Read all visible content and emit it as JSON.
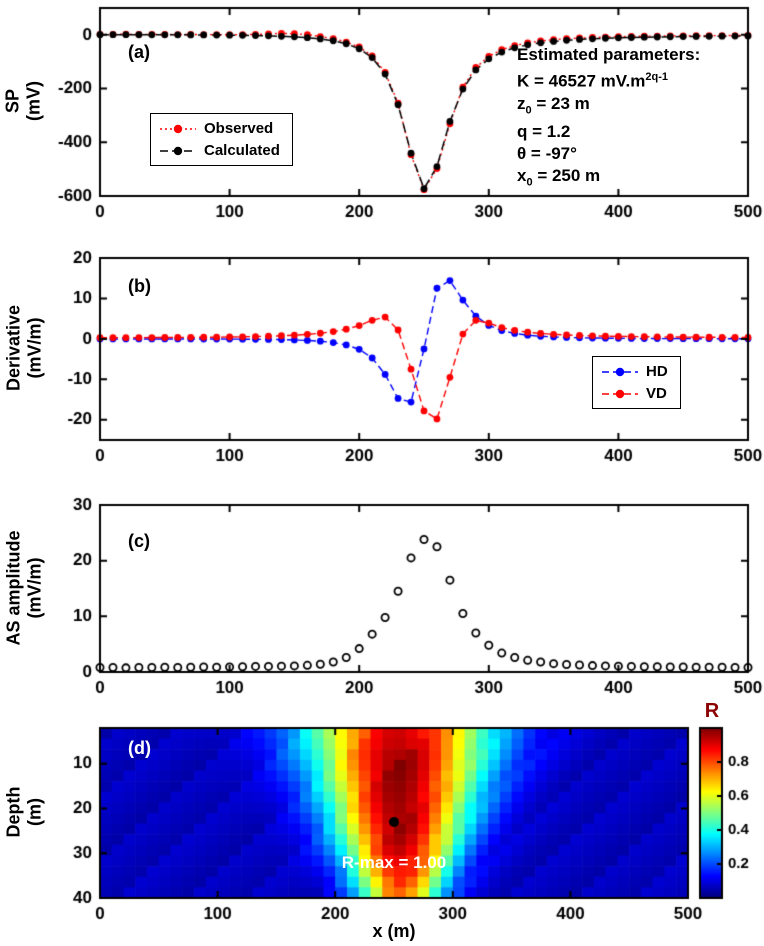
{
  "colors": {
    "observed": "#ff0000",
    "calculated": "#000000",
    "hd": "#0000ff",
    "vd": "#ff0000",
    "annotation_text": "#ffffff",
    "colorbar_label": "#8b0000",
    "background": "#ffffff"
  },
  "panels": {
    "a": {
      "label": "(a)",
      "ylabel": "SP\n(mV)",
      "legend": {
        "observed": "Observed",
        "calculated": "Calculated"
      },
      "params": {
        "title": "Estimated parameters:",
        "k_prefix": "K = 46527 mV.m",
        "k_sup": "2q-1",
        "z_base": "z",
        "z_sub": "0",
        "z_rest": " = 23 m",
        "q_line": "q = 1.2",
        "theta_line": "θ = -97°",
        "x_base": "x",
        "x_sub": "0",
        "x_rest": " = 250 m"
      }
    },
    "b": {
      "label": "(b)",
      "ylabel": "Derivative\n(mV/m)",
      "legend": {
        "hd": "HD",
        "vd": "VD"
      }
    },
    "c": {
      "label": "(c)",
      "ylabel": "AS amplitude\n(mV/m)"
    },
    "d": {
      "label": "(d)",
      "ylabel": "Depth\n(m)",
      "xlabel": "x (m)",
      "colorbar_label": "R",
      "annotation": "R-max = 1.00"
    }
  },
  "chart_data": [
    {
      "id": "a",
      "type": "scatter",
      "panel_label": "(a)",
      "ylabel": "SP (mV)",
      "xlim": [
        0,
        500
      ],
      "ylim": [
        -600,
        100
      ],
      "xticks": [
        0,
        100,
        200,
        300,
        400,
        500
      ],
      "yticks": [
        0,
        -200,
        -400,
        -600
      ],
      "legend_position": "inside-left",
      "annotations": [
        "Estimated parameters:",
        "K = 46527 mV.m^(2q-1)",
        "z0 = 23 m",
        "q = 1.2",
        "θ = -97°",
        "x0 = 250 m"
      ],
      "x": [
        0,
        10,
        20,
        30,
        40,
        50,
        60,
        70,
        80,
        90,
        100,
        110,
        120,
        130,
        140,
        150,
        160,
        170,
        180,
        190,
        200,
        210,
        220,
        230,
        240,
        250,
        260,
        270,
        280,
        290,
        300,
        310,
        320,
        330,
        340,
        350,
        360,
        370,
        380,
        390,
        400,
        410,
        420,
        430,
        440,
        450,
        460,
        470,
        480,
        490,
        500
      ],
      "series": [
        {
          "name": "Observed",
          "color": "#ff0000",
          "line": "dotted",
          "marker": "filled-circle",
          "values": [
            2.1,
            1.7,
            2.3,
            1.5,
            2.0,
            1.6,
            1.1,
            1.4,
            0.8,
            1.0,
            0.4,
            0.9,
            1.5,
            3.5,
            5.8,
            4.1,
            1.2,
            -6.5,
            -14.2,
            -26.8,
            -45.3,
            -78.4,
            -139.5,
            -254.6,
            -446.2,
            -576.4,
            -497.8,
            -331.0,
            -194.3,
            -121.6,
            -80.2,
            -55.4,
            -39.8,
            -29.6,
            -22.8,
            -17.9,
            -14.4,
            -11.7,
            -9.7,
            -8.1,
            -6.9,
            -5.9,
            -5.1,
            -4.5,
            -4.0,
            -3.6,
            -3.3,
            -3.0,
            -2.7,
            -2.5,
            -2.3
          ]
        },
        {
          "name": "Calculated",
          "color": "#000000",
          "line": "dashed",
          "marker": "filled-circle",
          "values": [
            0.6,
            0.6,
            0.5,
            0.4,
            0.3,
            0.2,
            0.1,
            -0.2,
            -0.4,
            -0.8,
            -1.2,
            -1.8,
            -2.7,
            -3.7,
            -5.3,
            -7.4,
            -10.4,
            -15.0,
            -21.9,
            -33.1,
            -51.7,
            -84.7,
            -146.0,
            -260.3,
            -440.6,
            -572.8,
            -490.3,
            -322.5,
            -201.7,
            -130.7,
            -89.4,
            -64.2,
            -48.1,
            -37.3,
            -29.8,
            -24.3,
            -20.2,
            -17.1,
            -14.6,
            -12.7,
            -11.1,
            -9.9,
            -8.8,
            -7.9,
            -7.1,
            -6.5,
            -5.9,
            -5.5,
            -5.0,
            -4.7,
            -4.3
          ]
        }
      ]
    },
    {
      "id": "b",
      "type": "scatter",
      "panel_label": "(b)",
      "ylabel": "Derivative (mV/m)",
      "xlim": [
        0,
        500
      ],
      "ylim": [
        -25,
        20
      ],
      "xticks": [
        0,
        100,
        200,
        300,
        400,
        500
      ],
      "yticks": [
        20,
        10,
        0,
        -10,
        -20
      ],
      "legend_position": "inside-right",
      "x": [
        0,
        10,
        20,
        30,
        40,
        50,
        60,
        70,
        80,
        90,
        100,
        110,
        120,
        130,
        140,
        150,
        160,
        170,
        180,
        190,
        200,
        210,
        220,
        230,
        240,
        250,
        260,
        270,
        280,
        290,
        300,
        310,
        320,
        330,
        340,
        350,
        360,
        370,
        380,
        390,
        400,
        410,
        420,
        430,
        440,
        450,
        460,
        470,
        480,
        490,
        500
      ],
      "series": [
        {
          "name": "HD",
          "color": "#0000ff",
          "line": "dashed",
          "marker": "filled-circle",
          "values": [
            0.0,
            -0.01,
            -0.01,
            -0.01,
            -0.01,
            -0.01,
            -0.02,
            -0.02,
            -0.03,
            -0.04,
            -0.05,
            -0.07,
            -0.1,
            -0.13,
            -0.18,
            -0.26,
            -0.38,
            -0.57,
            -0.91,
            -1.49,
            -2.58,
            -4.72,
            -8.78,
            -14.73,
            -15.63,
            -2.49,
            12.52,
            14.43,
            9.59,
            5.62,
            3.33,
            2.07,
            1.35,
            0.92,
            0.65,
            0.48,
            0.36,
            0.28,
            0.22,
            0.18,
            0.14,
            0.12,
            0.1,
            0.08,
            0.07,
            0.06,
            0.05,
            0.05,
            0.04,
            0.04,
            0.03
          ]
        },
        {
          "name": "VD",
          "color": "#ff0000",
          "line": "dashed",
          "marker": "filled-circle",
          "values": [
            0.3,
            0.3,
            0.31,
            0.32,
            0.33,
            0.34,
            0.36,
            0.38,
            0.4,
            0.43,
            0.47,
            0.52,
            0.58,
            0.66,
            0.77,
            0.92,
            1.12,
            1.4,
            1.8,
            2.4,
            3.3,
            4.6,
            5.4,
            2.2,
            -7.5,
            -17.8,
            -19.8,
            -9.5,
            1.2,
            4.6,
            3.9,
            2.8,
            2.1,
            1.65,
            1.35,
            1.12,
            0.96,
            0.84,
            0.75,
            0.68,
            0.62,
            0.57,
            0.53,
            0.5,
            0.47,
            0.45,
            0.43,
            0.41,
            0.39,
            0.38,
            0.37
          ]
        }
      ]
    },
    {
      "id": "c",
      "type": "scatter",
      "panel_label": "(c)",
      "ylabel": "AS amplitude (mV/m)",
      "xlim": [
        0,
        500
      ],
      "ylim": [
        0,
        30
      ],
      "xticks": [
        0,
        100,
        200,
        300,
        400,
        500
      ],
      "yticks": [
        0,
        10,
        20,
        30
      ],
      "x": [
        0,
        10,
        20,
        30,
        40,
        50,
        60,
        70,
        80,
        90,
        100,
        110,
        120,
        130,
        140,
        150,
        160,
        170,
        180,
        190,
        200,
        210,
        220,
        230,
        240,
        250,
        260,
        270,
        280,
        290,
        300,
        310,
        320,
        330,
        340,
        350,
        360,
        370,
        380,
        390,
        400,
        410,
        420,
        430,
        440,
        450,
        460,
        470,
        480,
        490,
        500
      ],
      "series": [
        {
          "name": "AS amplitude",
          "color": "#000000",
          "line": "none",
          "marker": "open-circle",
          "values": [
            0.8,
            0.8,
            0.75,
            0.8,
            0.8,
            0.85,
            0.8,
            0.85,
            0.9,
            0.85,
            0.9,
            0.95,
            1.0,
            1.0,
            1.05,
            1.1,
            1.2,
            1.4,
            1.8,
            2.6,
            4.2,
            6.8,
            9.8,
            14.5,
            20.5,
            23.8,
            22.5,
            16.5,
            10.5,
            7.0,
            4.8,
            3.4,
            2.6,
            2.1,
            1.8,
            1.5,
            1.35,
            1.25,
            1.15,
            1.1,
            1.05,
            1.0,
            0.95,
            0.95,
            0.9,
            0.9,
            0.85,
            0.85,
            0.85,
            0.8,
            0.8
          ]
        }
      ]
    },
    {
      "id": "d",
      "type": "heatmap",
      "panel_label": "(d)",
      "ylabel": "Depth (m)",
      "xlabel": "x (m)",
      "xlim": [
        0,
        500
      ],
      "depth_lim": [
        2,
        40
      ],
      "xticks": [
        0,
        100,
        200,
        300,
        400,
        500
      ],
      "depth_ticks": [
        10,
        20,
        30,
        40
      ],
      "colorbar": {
        "label": "R",
        "range": [
          0,
          1
        ],
        "ticks": [
          0.2,
          0.4,
          0.6,
          0.8
        ],
        "colormap": "jet"
      },
      "best_fit": {
        "x": 250,
        "depth": 23,
        "r_max": 1.0,
        "label": "R-max = 1.00"
      },
      "grid_x": [
        10,
        30,
        50,
        70,
        90,
        110,
        130,
        150,
        170,
        190,
        210,
        230,
        250,
        270,
        290,
        310,
        330,
        350,
        370,
        390,
        410,
        430,
        450,
        470,
        490
      ],
      "grid_depth": [
        4,
        9,
        14,
        19,
        24,
        29,
        34,
        39
      ],
      "values": [
        [
          0.06,
          0.06,
          0.06,
          0.06,
          0.07,
          0.09,
          0.12,
          0.2,
          0.32,
          0.49,
          0.68,
          0.84,
          0.93,
          0.9,
          0.77,
          0.58,
          0.4,
          0.25,
          0.15,
          0.1,
          0.08,
          0.07,
          0.06,
          0.06,
          0.06
        ],
        [
          0.06,
          0.06,
          0.06,
          0.06,
          0.06,
          0.07,
          0.1,
          0.17,
          0.28,
          0.46,
          0.68,
          0.88,
          0.99,
          0.95,
          0.79,
          0.57,
          0.37,
          0.22,
          0.13,
          0.09,
          0.07,
          0.06,
          0.06,
          0.06,
          0.06
        ],
        [
          0.06,
          0.06,
          0.06,
          0.06,
          0.06,
          0.07,
          0.08,
          0.13,
          0.23,
          0.41,
          0.64,
          0.87,
          0.99,
          0.95,
          0.76,
          0.52,
          0.31,
          0.17,
          0.1,
          0.07,
          0.06,
          0.06,
          0.06,
          0.06,
          0.06
        ],
        [
          0.06,
          0.06,
          0.06,
          0.06,
          0.06,
          0.06,
          0.07,
          0.1,
          0.18,
          0.34,
          0.59,
          0.85,
          0.99,
          0.94,
          0.72,
          0.46,
          0.25,
          0.13,
          0.08,
          0.07,
          0.06,
          0.06,
          0.06,
          0.06,
          0.06
        ],
        [
          0.06,
          0.06,
          0.06,
          0.06,
          0.06,
          0.06,
          0.06,
          0.08,
          0.13,
          0.27,
          0.52,
          0.81,
          0.99,
          0.93,
          0.67,
          0.38,
          0.19,
          0.1,
          0.07,
          0.06,
          0.06,
          0.06,
          0.06,
          0.06,
          0.06
        ],
        [
          0.06,
          0.06,
          0.06,
          0.06,
          0.06,
          0.06,
          0.06,
          0.07,
          0.1,
          0.2,
          0.43,
          0.75,
          0.96,
          0.88,
          0.59,
          0.29,
          0.13,
          0.08,
          0.06,
          0.06,
          0.06,
          0.06,
          0.06,
          0.06,
          0.06
        ],
        [
          0.06,
          0.06,
          0.06,
          0.06,
          0.06,
          0.06,
          0.06,
          0.06,
          0.07,
          0.13,
          0.31,
          0.64,
          0.89,
          0.8,
          0.47,
          0.2,
          0.09,
          0.06,
          0.06,
          0.06,
          0.06,
          0.06,
          0.06,
          0.06,
          0.06
        ],
        [
          0.06,
          0.06,
          0.06,
          0.06,
          0.06,
          0.06,
          0.06,
          0.06,
          0.06,
          0.08,
          0.2,
          0.51,
          0.79,
          0.68,
          0.34,
          0.12,
          0.07,
          0.06,
          0.06,
          0.06,
          0.06,
          0.06,
          0.06,
          0.06,
          0.06
        ]
      ]
    }
  ]
}
